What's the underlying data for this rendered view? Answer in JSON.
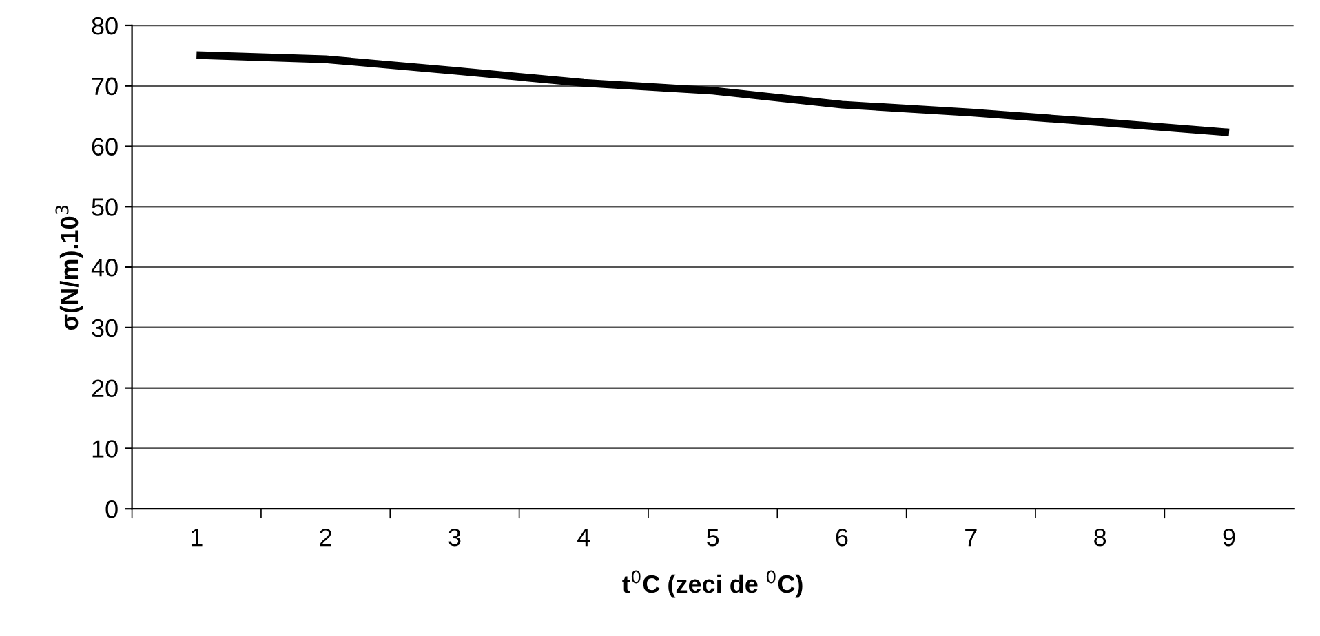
{
  "chart_data": {
    "type": "line",
    "xlabel": "t$^{0}$C (zeci de $^{0}$C)",
    "ylabel": "σ(N/m).10$^{3}$",
    "categories": [
      "1",
      "2",
      "3",
      "4",
      "5",
      "6",
      "7",
      "8",
      "9"
    ],
    "series": [
      {
        "color": "#000000",
        "values": [
          75.1,
          74.4,
          72.5,
          70.5,
          69.2,
          66.9,
          65.6,
          64.0,
          62.3
        ]
      }
    ],
    "ylim": [
      0,
      80
    ],
    "yticks": [
      0,
      10,
      20,
      30,
      40,
      50,
      60,
      70,
      80
    ],
    "grid": "y",
    "marker": "none",
    "line_style": "solid"
  }
}
